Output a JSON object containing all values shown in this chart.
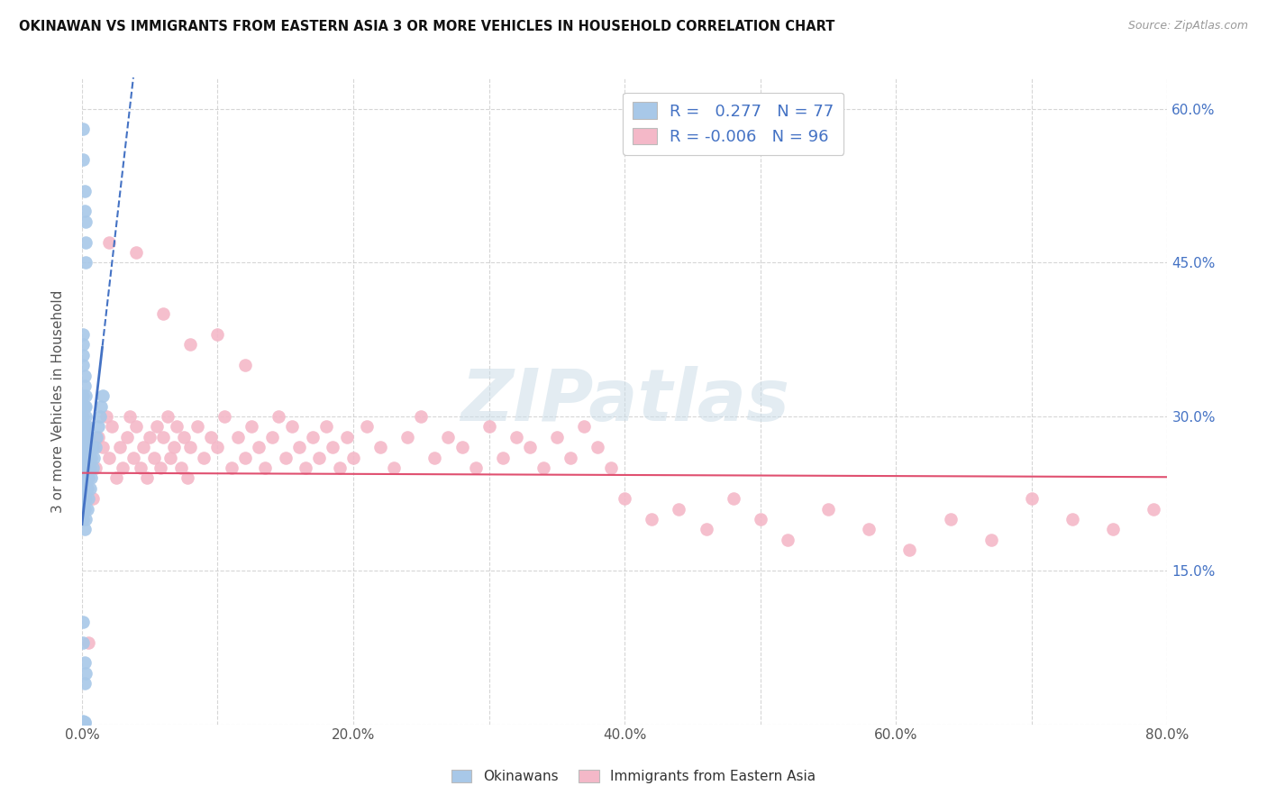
{
  "title": "OKINAWAN VS IMMIGRANTS FROM EASTERN ASIA 3 OR MORE VEHICLES IN HOUSEHOLD CORRELATION CHART",
  "source": "Source: ZipAtlas.com",
  "ylabel": "3 or more Vehicles in Household",
  "x_tick_positions": [
    0.0,
    0.1,
    0.2,
    0.3,
    0.4,
    0.5,
    0.6,
    0.7,
    0.8
  ],
  "x_tick_labels": [
    "0.0%",
    "",
    "20.0%",
    "",
    "40.0%",
    "",
    "60.0%",
    "",
    "80.0%"
  ],
  "y_tick_positions": [
    0.0,
    0.15,
    0.3,
    0.45,
    0.6
  ],
  "y_tick_labels_right": [
    "",
    "15.0%",
    "30.0%",
    "45.0%",
    "60.0%"
  ],
  "okinawan_R": 0.277,
  "okinawan_N": 77,
  "immigrant_R": -0.006,
  "immigrant_N": 96,
  "blue_color": "#a8c8e8",
  "pink_color": "#f4b8c8",
  "blue_line_color": "#4472c4",
  "pink_line_color": "#e05070",
  "watermark_text": "ZIPatlas",
  "okinawan_x": [
    0.001,
    0.001,
    0.001,
    0.001,
    0.001,
    0.001,
    0.001,
    0.001,
    0.001,
    0.002,
    0.002,
    0.002,
    0.002,
    0.002,
    0.002,
    0.002,
    0.002,
    0.003,
    0.003,
    0.003,
    0.003,
    0.003,
    0.003,
    0.003,
    0.003,
    0.003,
    0.004,
    0.004,
    0.004,
    0.004,
    0.004,
    0.005,
    0.005,
    0.005,
    0.005,
    0.006,
    0.006,
    0.006,
    0.007,
    0.007,
    0.008,
    0.008,
    0.009,
    0.01,
    0.011,
    0.012,
    0.013,
    0.014,
    0.015,
    0.001,
    0.001,
    0.002,
    0.002,
    0.003,
    0.003,
    0.003,
    0.001,
    0.001,
    0.002,
    0.002,
    0.003,
    0.001,
    0.001,
    0.001,
    0.001,
    0.001,
    0.001,
    0.001,
    0.002,
    0.002,
    0.001,
    0.002,
    0.003,
    0.001,
    0.001,
    0.002,
    0.001
  ],
  "okinawan_y": [
    0.2,
    0.22,
    0.24,
    0.26,
    0.28,
    0.3,
    0.32,
    0.21,
    0.23,
    0.19,
    0.21,
    0.23,
    0.25,
    0.27,
    0.29,
    0.31,
    0.22,
    0.2,
    0.22,
    0.24,
    0.26,
    0.28,
    0.3,
    0.32,
    0.23,
    0.25,
    0.21,
    0.23,
    0.25,
    0.27,
    0.29,
    0.22,
    0.24,
    0.26,
    0.28,
    0.23,
    0.25,
    0.27,
    0.24,
    0.26,
    0.25,
    0.27,
    0.26,
    0.27,
    0.28,
    0.29,
    0.3,
    0.31,
    0.32,
    0.55,
    0.58,
    0.5,
    0.52,
    0.45,
    0.47,
    0.49,
    0.1,
    0.08,
    0.06,
    0.04,
    0.05,
    0.001,
    0.002,
    0.001,
    0.003,
    0.002,
    0.001,
    0.002,
    0.002,
    0.001,
    0.35,
    0.33,
    0.31,
    0.38,
    0.36,
    0.34,
    0.37
  ],
  "immigrant_x": [
    0.005,
    0.008,
    0.01,
    0.012,
    0.015,
    0.018,
    0.02,
    0.022,
    0.025,
    0.028,
    0.03,
    0.033,
    0.035,
    0.038,
    0.04,
    0.043,
    0.045,
    0.048,
    0.05,
    0.053,
    0.055,
    0.058,
    0.06,
    0.063,
    0.065,
    0.068,
    0.07,
    0.073,
    0.075,
    0.078,
    0.08,
    0.085,
    0.09,
    0.095,
    0.1,
    0.105,
    0.11,
    0.115,
    0.12,
    0.125,
    0.13,
    0.135,
    0.14,
    0.145,
    0.15,
    0.155,
    0.16,
    0.165,
    0.17,
    0.175,
    0.18,
    0.185,
    0.19,
    0.195,
    0.2,
    0.21,
    0.22,
    0.23,
    0.24,
    0.25,
    0.26,
    0.27,
    0.28,
    0.29,
    0.3,
    0.31,
    0.32,
    0.33,
    0.34,
    0.35,
    0.36,
    0.37,
    0.38,
    0.39,
    0.4,
    0.42,
    0.44,
    0.46,
    0.48,
    0.5,
    0.52,
    0.55,
    0.58,
    0.61,
    0.64,
    0.67,
    0.7,
    0.73,
    0.76,
    0.79,
    0.02,
    0.04,
    0.06,
    0.08,
    0.1,
    0.12
  ],
  "immigrant_y": [
    0.08,
    0.22,
    0.25,
    0.28,
    0.27,
    0.3,
    0.26,
    0.29,
    0.24,
    0.27,
    0.25,
    0.28,
    0.3,
    0.26,
    0.29,
    0.25,
    0.27,
    0.24,
    0.28,
    0.26,
    0.29,
    0.25,
    0.28,
    0.3,
    0.26,
    0.27,
    0.29,
    0.25,
    0.28,
    0.24,
    0.27,
    0.29,
    0.26,
    0.28,
    0.27,
    0.3,
    0.25,
    0.28,
    0.26,
    0.29,
    0.27,
    0.25,
    0.28,
    0.3,
    0.26,
    0.29,
    0.27,
    0.25,
    0.28,
    0.26,
    0.29,
    0.27,
    0.25,
    0.28,
    0.26,
    0.29,
    0.27,
    0.25,
    0.28,
    0.3,
    0.26,
    0.28,
    0.27,
    0.25,
    0.29,
    0.26,
    0.28,
    0.27,
    0.25,
    0.28,
    0.26,
    0.29,
    0.27,
    0.25,
    0.22,
    0.2,
    0.21,
    0.19,
    0.22,
    0.2,
    0.18,
    0.21,
    0.19,
    0.17,
    0.2,
    0.18,
    0.22,
    0.2,
    0.19,
    0.21,
    0.47,
    0.46,
    0.4,
    0.37,
    0.38,
    0.35
  ],
  "xlim": [
    0.0,
    0.8
  ],
  "ylim": [
    0.0,
    0.63
  ]
}
